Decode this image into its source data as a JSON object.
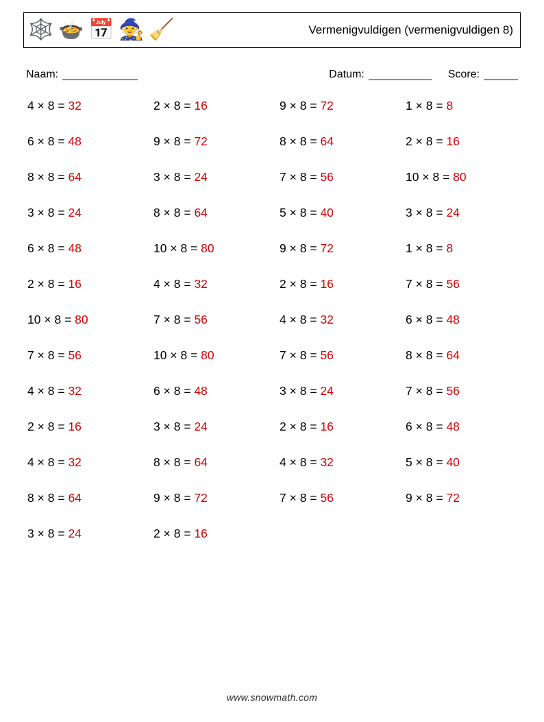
{
  "header": {
    "title": "Vermenigvuldigen (vermenigvuldigen 8)",
    "icons": [
      "🕸️",
      "🍲",
      "📅",
      "🧙",
      "🧹"
    ]
  },
  "meta": {
    "name_label": "Naam:",
    "date_label": "Datum:",
    "score_label": "Score:",
    "name_blank_width": 110,
    "date_blank_width": 92,
    "score_blank_width": 50
  },
  "problems": {
    "type": "table",
    "columns": 4,
    "rows": 13,
    "operator": "×",
    "equals": "=",
    "answer_color": "#d40000",
    "cells": [
      {
        "a": 4,
        "b": 8,
        "ans": 32
      },
      {
        "a": 2,
        "b": 8,
        "ans": 16
      },
      {
        "a": 9,
        "b": 8,
        "ans": 72
      },
      {
        "a": 1,
        "b": 8,
        "ans": 8
      },
      {
        "a": 6,
        "b": 8,
        "ans": 48
      },
      {
        "a": 9,
        "b": 8,
        "ans": 72
      },
      {
        "a": 8,
        "b": 8,
        "ans": 64
      },
      {
        "a": 2,
        "b": 8,
        "ans": 16
      },
      {
        "a": 8,
        "b": 8,
        "ans": 64
      },
      {
        "a": 3,
        "b": 8,
        "ans": 24
      },
      {
        "a": 7,
        "b": 8,
        "ans": 56
      },
      {
        "a": 10,
        "b": 8,
        "ans": 80
      },
      {
        "a": 3,
        "b": 8,
        "ans": 24
      },
      {
        "a": 8,
        "b": 8,
        "ans": 64
      },
      {
        "a": 5,
        "b": 8,
        "ans": 40
      },
      {
        "a": 3,
        "b": 8,
        "ans": 24
      },
      {
        "a": 6,
        "b": 8,
        "ans": 48
      },
      {
        "a": 10,
        "b": 8,
        "ans": 80
      },
      {
        "a": 9,
        "b": 8,
        "ans": 72
      },
      {
        "a": 1,
        "b": 8,
        "ans": 8
      },
      {
        "a": 2,
        "b": 8,
        "ans": 16
      },
      {
        "a": 4,
        "b": 8,
        "ans": 32
      },
      {
        "a": 2,
        "b": 8,
        "ans": 16
      },
      {
        "a": 7,
        "b": 8,
        "ans": 56
      },
      {
        "a": 10,
        "b": 8,
        "ans": 80
      },
      {
        "a": 7,
        "b": 8,
        "ans": 56
      },
      {
        "a": 4,
        "b": 8,
        "ans": 32
      },
      {
        "a": 6,
        "b": 8,
        "ans": 48
      },
      {
        "a": 7,
        "b": 8,
        "ans": 56
      },
      {
        "a": 10,
        "b": 8,
        "ans": 80
      },
      {
        "a": 7,
        "b": 8,
        "ans": 56
      },
      {
        "a": 8,
        "b": 8,
        "ans": 64
      },
      {
        "a": 4,
        "b": 8,
        "ans": 32
      },
      {
        "a": 6,
        "b": 8,
        "ans": 48
      },
      {
        "a": 3,
        "b": 8,
        "ans": 24
      },
      {
        "a": 7,
        "b": 8,
        "ans": 56
      },
      {
        "a": 2,
        "b": 8,
        "ans": 16
      },
      {
        "a": 3,
        "b": 8,
        "ans": 24
      },
      {
        "a": 2,
        "b": 8,
        "ans": 16
      },
      {
        "a": 6,
        "b": 8,
        "ans": 48
      },
      {
        "a": 4,
        "b": 8,
        "ans": 32
      },
      {
        "a": 8,
        "b": 8,
        "ans": 64
      },
      {
        "a": 4,
        "b": 8,
        "ans": 32
      },
      {
        "a": 5,
        "b": 8,
        "ans": 40
      },
      {
        "a": 8,
        "b": 8,
        "ans": 64
      },
      {
        "a": 9,
        "b": 8,
        "ans": 72
      },
      {
        "a": 7,
        "b": 8,
        "ans": 56
      },
      {
        "a": 9,
        "b": 8,
        "ans": 72
      },
      {
        "a": 3,
        "b": 8,
        "ans": 24
      },
      {
        "a": 2,
        "b": 8,
        "ans": 16
      }
    ]
  },
  "footer": {
    "text": "www.snowmath.com"
  }
}
